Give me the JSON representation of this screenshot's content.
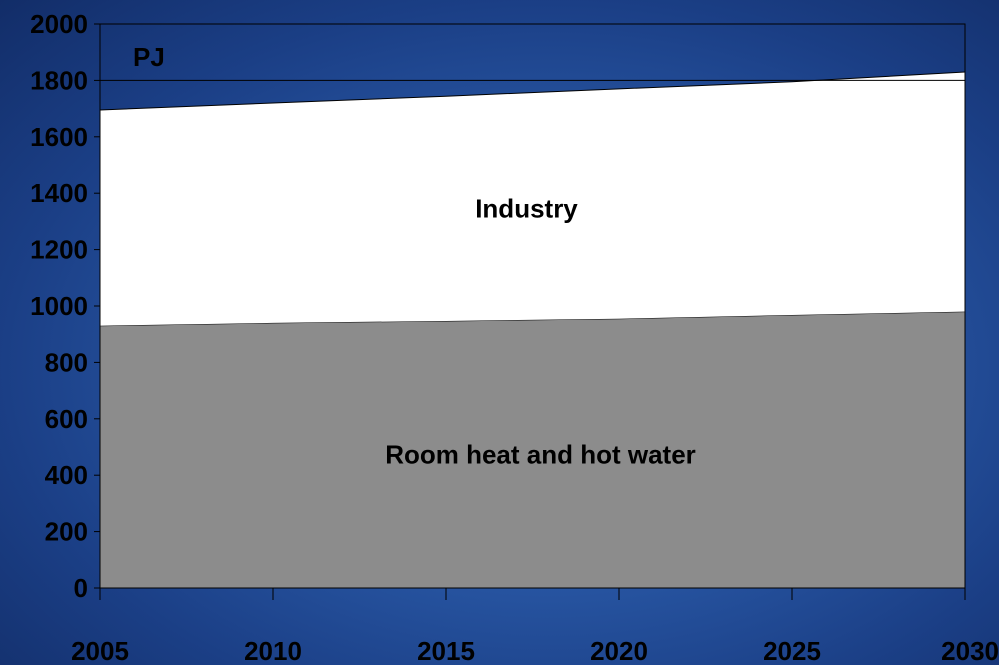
{
  "chart_data": {
    "type": "area",
    "stacked": true,
    "unit_label": "PJ",
    "x": [
      2005,
      2010,
      2015,
      2020,
      2025,
      2030
    ],
    "series": [
      {
        "name": "Room heat and hot water",
        "values": [
          930,
          940,
          947,
          955,
          968,
          980
        ],
        "color": "#8c8c8c"
      },
      {
        "name": "Industry",
        "values": [
          765,
          780,
          797,
          815,
          827,
          850
        ],
        "color": "#ffffff"
      }
    ],
    "ylim": [
      0,
      2000
    ],
    "yticks": [
      0,
      200,
      400,
      600,
      800,
      1000,
      1200,
      1400,
      1600,
      1800,
      2000
    ],
    "xticks": [
      "2005",
      "2010",
      "2015",
      "2020",
      "2025",
      "2030"
    ],
    "gridlines_y": [
      1800
    ],
    "grid": false,
    "legend": "none",
    "colors": {
      "plot_border": "#000000",
      "background_top": "#1b3f86",
      "background_mid": "#3f73c4"
    }
  }
}
